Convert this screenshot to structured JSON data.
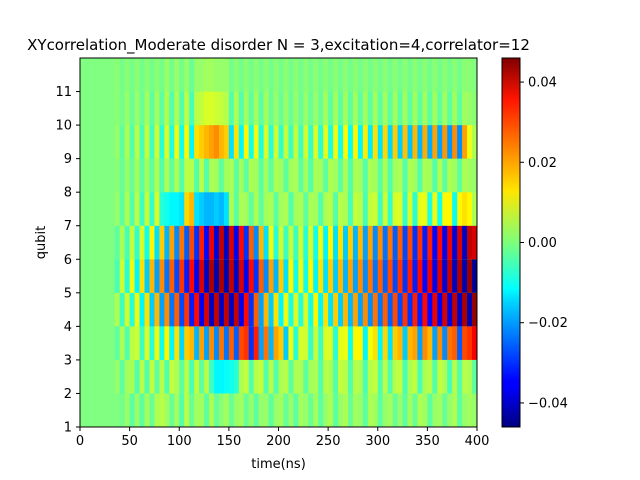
{
  "chart_data": {
    "type": "heatmap",
    "title": "XYcorrelation_Moderate disorder  N =  3,excitation=4,correlator=12",
    "xlabel": "time(ns)",
    "ylabel": "qubit",
    "xlim": [
      0,
      400
    ],
    "ylim": [
      1,
      12
    ],
    "x_ticks": [
      0,
      50,
      100,
      150,
      200,
      250,
      300,
      350,
      400
    ],
    "y_ticks": [
      1,
      2,
      3,
      4,
      5,
      6,
      7,
      8,
      9,
      10,
      11
    ],
    "colormap": "jet",
    "colorbar": {
      "min": -0.046,
      "max": 0.046,
      "ticks": [
        -0.04,
        -0.02,
        0.0,
        0.02,
        0.04
      ],
      "tick_labels": [
        "−0.04",
        "−0.02",
        "0.00",
        "0.02",
        "0.04"
      ]
    },
    "time_step": 5,
    "rows": [
      {
        "qubit_from": 1,
        "qubit_to": 2,
        "values": [
          0,
          0,
          0,
          0,
          0,
          0,
          0,
          0,
          -0.001,
          0.002,
          -0.003,
          0.002,
          -0.003,
          0.003,
          -0.002,
          0.004,
          0.005,
          0.003,
          -0.002,
          0.003,
          -0.004,
          0.005,
          -0.002,
          0.003,
          0.003,
          -0.003,
          0.004,
          -0.002,
          0.001,
          0.003,
          -0.002,
          0.002,
          0.003,
          -0.002,
          0.002,
          -0.003,
          0.002,
          0.002,
          -0.003,
          0.002,
          0.003,
          -0.002,
          0.002,
          -0.003,
          0.003,
          0.002,
          -0.002,
          0.003,
          -0.003,
          0.002,
          0.004,
          -0.003,
          0.002,
          0.004,
          -0.002,
          0.003,
          0.002,
          -0.003,
          0.004,
          0.003,
          -0.003,
          0.002,
          0.003,
          -0.002,
          0.002,
          -0.003,
          0.003,
          -0.002,
          0.004,
          0.003,
          -0.003,
          0.002,
          0.003,
          -0.002,
          0.002,
          0.004,
          -0.003,
          0.002,
          0.003,
          0.002
        ]
      },
      {
        "qubit_from": 2,
        "qubit_to": 3,
        "values": [
          0,
          0,
          0,
          0,
          0,
          0,
          0,
          0.002,
          -0.003,
          0.003,
          0.004,
          -0.004,
          0.005,
          -0.004,
          0.006,
          -0.003,
          0.005,
          -0.004,
          0.006,
          0.004,
          -0.003,
          0.005,
          -0.005,
          0.006,
          -0.003,
          0.005,
          -0.006,
          -0.012,
          -0.012,
          -0.011,
          -0.01,
          -0.008,
          0.004,
          0.006,
          -0.004,
          0.005,
          0.006,
          -0.004,
          0.005,
          -0.004,
          0.004,
          0.005,
          -0.003,
          0.004,
          0.004,
          -0.003,
          0.003,
          0.004,
          -0.004,
          0.005,
          0.004,
          -0.004,
          0.006,
          0.005,
          -0.004,
          0.005,
          0.004,
          -0.005,
          0.005,
          0.006,
          -0.004,
          0.005,
          -0.004,
          0.005,
          0.006,
          -0.005,
          0.004,
          0.006,
          -0.005,
          0.004,
          0.005,
          -0.004,
          0.006,
          0.004,
          -0.005,
          0.005,
          -0.004,
          0.005,
          0.004,
          -0.003
        ]
      },
      {
        "qubit_from": 3,
        "qubit_to": 4,
        "values": [
          0,
          0,
          0,
          0,
          0,
          0,
          0,
          -0.003,
          0.004,
          -0.004,
          0.005,
          0.007,
          -0.006,
          0.008,
          -0.008,
          0.01,
          -0.01,
          0.012,
          -0.012,
          0.014,
          -0.015,
          0.016,
          0.018,
          -0.018,
          0.02,
          -0.02,
          0.022,
          -0.022,
          0.024,
          -0.024,
          0.026,
          -0.026,
          0.028,
          0.03,
          -0.03,
          0.032,
          -0.02,
          0.024,
          -0.018,
          0.02,
          0.016,
          -0.016,
          0.01,
          -0.008,
          0.008,
          0.007,
          -0.007,
          0.006,
          -0.006,
          0.008,
          0.008,
          -0.008,
          0.009,
          0.01,
          -0.01,
          0.012,
          0.012,
          -0.012,
          0.01,
          0.014,
          -0.012,
          0.015,
          -0.014,
          0.016,
          0.018,
          -0.016,
          0.018,
          0.02,
          -0.02,
          0.022,
          0.018,
          -0.02,
          0.022,
          -0.022,
          0.024,
          0.026,
          -0.026,
          0.028,
          0.03,
          0.035
        ]
      },
      {
        "qubit_from": 4,
        "qubit_to": 5,
        "values": [
          0,
          0,
          0,
          0,
          0,
          0,
          0,
          0.004,
          -0.006,
          0.007,
          -0.008,
          0.01,
          -0.012,
          0.014,
          -0.016,
          0.018,
          -0.02,
          0.022,
          -0.024,
          0.026,
          -0.028,
          0.03,
          -0.032,
          0.034,
          -0.036,
          0.038,
          -0.04,
          0.04,
          -0.04,
          0.04,
          -0.04,
          0.04,
          -0.036,
          0.034,
          -0.03,
          0.026,
          -0.02,
          0.018,
          -0.016,
          0.014,
          -0.012,
          0.01,
          -0.009,
          0.008,
          -0.008,
          0.008,
          -0.01,
          0.012,
          -0.012,
          0.014,
          -0.014,
          0.016,
          -0.016,
          0.018,
          -0.018,
          0.02,
          -0.02,
          0.022,
          -0.022,
          0.024,
          -0.024,
          0.026,
          -0.026,
          0.028,
          -0.028,
          0.03,
          -0.03,
          0.032,
          -0.032,
          0.034,
          -0.034,
          0.036,
          -0.036,
          0.038,
          -0.038,
          0.04,
          -0.04,
          0.042,
          -0.042,
          0.044
        ]
      },
      {
        "qubit_from": 5,
        "qubit_to": 6,
        "values": [
          0,
          0,
          0,
          0,
          0,
          0,
          0,
          -0.005,
          0.007,
          -0.008,
          0.01,
          -0.012,
          0.014,
          -0.016,
          0.018,
          -0.02,
          0.022,
          -0.024,
          0.026,
          -0.028,
          0.03,
          -0.032,
          0.034,
          -0.036,
          0.038,
          -0.04,
          0.042,
          -0.042,
          0.042,
          -0.042,
          0.04,
          -0.04,
          0.038,
          -0.036,
          0.034,
          -0.03,
          0.026,
          -0.022,
          0.02,
          -0.018,
          0.016,
          -0.014,
          0.012,
          -0.01,
          0.01,
          -0.01,
          0.012,
          -0.012,
          0.014,
          -0.014,
          0.016,
          -0.016,
          0.018,
          -0.018,
          0.02,
          -0.02,
          0.022,
          -0.022,
          0.024,
          -0.024,
          0.026,
          -0.026,
          0.028,
          -0.028,
          0.03,
          -0.03,
          0.032,
          -0.032,
          0.034,
          -0.034,
          0.036,
          -0.036,
          0.038,
          -0.038,
          0.04,
          -0.04,
          0.042,
          -0.042,
          0.044,
          -0.044
        ]
      },
      {
        "qubit_from": 6,
        "qubit_to": 7,
        "values": [
          0,
          0,
          0,
          0,
          0,
          0,
          0,
          -0.003,
          0.004,
          -0.005,
          0.006,
          -0.007,
          0.008,
          -0.01,
          0.012,
          -0.014,
          0.016,
          -0.018,
          0.02,
          -0.022,
          0.024,
          -0.026,
          0.028,
          -0.03,
          0.032,
          -0.034,
          0.036,
          -0.038,
          0.04,
          -0.04,
          0.038,
          -0.036,
          0.034,
          -0.03,
          0.026,
          -0.022,
          0.018,
          -0.014,
          0.01,
          -0.008,
          0.007,
          -0.006,
          0.006,
          -0.006,
          0.007,
          -0.008,
          0.008,
          -0.01,
          0.01,
          -0.012,
          0.012,
          -0.014,
          0.014,
          -0.016,
          0.016,
          -0.018,
          0.018,
          -0.02,
          0.02,
          -0.022,
          0.022,
          -0.024,
          0.024,
          -0.026,
          0.026,
          -0.028,
          0.028,
          -0.03,
          0.03,
          -0.032,
          0.032,
          -0.034,
          0.034,
          -0.036,
          0.036,
          -0.038,
          0.038,
          -0.04,
          0.04,
          0.038
        ]
      },
      {
        "qubit_from": 7,
        "qubit_to": 8,
        "values": [
          0,
          0,
          0,
          0,
          0,
          0,
          0,
          0.002,
          -0.003,
          0.004,
          -0.004,
          0.005,
          -0.006,
          0.006,
          -0.007,
          0.008,
          -0.008,
          -0.01,
          -0.012,
          -0.012,
          -0.014,
          0.015,
          0.018,
          -0.014,
          -0.016,
          -0.018,
          -0.018,
          -0.016,
          -0.018,
          -0.014,
          0.004,
          -0.003,
          0.004,
          0.003,
          -0.003,
          0.004,
          -0.003,
          0.003,
          0.004,
          -0.003,
          0.003,
          0.004,
          -0.004,
          0.003,
          0.004,
          -0.003,
          0.004,
          0.003,
          -0.004,
          0.004,
          0.005,
          -0.004,
          0.005,
          0.004,
          -0.005,
          0.006,
          0.005,
          -0.005,
          0.006,
          0.007,
          -0.006,
          0.007,
          -0.007,
          0.008,
          0.008,
          -0.007,
          0.008,
          -0.008,
          0.009,
          0.01,
          -0.009,
          0.01,
          -0.01,
          0.012,
          0.012,
          -0.011,
          0.012,
          0.014,
          0.012,
          0.004
        ]
      },
      {
        "qubit_from": 8,
        "qubit_to": 9,
        "values": [
          0,
          0,
          0,
          0,
          0,
          0,
          0,
          0.001,
          -0.002,
          0.002,
          -0.002,
          0.003,
          -0.003,
          0.003,
          -0.003,
          0.004,
          -0.004,
          0.004,
          -0.003,
          0.004,
          -0.004,
          0.005,
          0.005,
          -0.004,
          0.005,
          -0.004,
          0.004,
          0.003,
          -0.003,
          0.003,
          0.004,
          -0.003,
          0.003,
          -0.003,
          0.004,
          0.003,
          -0.003,
          0.003,
          -0.003,
          0.004,
          0.003,
          -0.003,
          0.003,
          0.004,
          -0.003,
          0.003,
          -0.004,
          0.004,
          0.003,
          -0.003,
          0.004,
          0.003,
          -0.003,
          0.004,
          -0.004,
          0.004,
          0.003,
          -0.004,
          0.004,
          0.003,
          -0.003,
          0.004,
          -0.004,
          0.003,
          0.004,
          -0.004,
          0.004,
          0.003,
          -0.004,
          0.004,
          0.003,
          -0.004,
          0.004,
          -0.003,
          0.004,
          0.003,
          -0.003,
          0.004,
          0.003,
          0.002
        ]
      },
      {
        "qubit_from": 9,
        "qubit_to": 10,
        "values": [
          0,
          0,
          0,
          0,
          0,
          0,
          0,
          0.002,
          -0.003,
          0.004,
          -0.004,
          0.005,
          -0.005,
          0.006,
          -0.006,
          0.007,
          -0.008,
          0.008,
          -0.009,
          0.01,
          -0.01,
          0.012,
          -0.012,
          0.014,
          0.016,
          0.018,
          0.02,
          0.022,
          0.018,
          0.016,
          -0.014,
          0.014,
          -0.012,
          0.012,
          -0.01,
          0.01,
          -0.009,
          0.008,
          -0.008,
          0.007,
          -0.007,
          0.006,
          -0.006,
          0.006,
          -0.006,
          0.007,
          -0.007,
          0.008,
          -0.008,
          0.009,
          -0.009,
          0.01,
          -0.01,
          0.011,
          -0.011,
          0.012,
          -0.012,
          0.013,
          -0.013,
          0.014,
          -0.014,
          0.015,
          -0.015,
          0.016,
          -0.016,
          0.017,
          -0.017,
          0.018,
          -0.018,
          0.019,
          -0.019,
          0.02,
          -0.02,
          0.021,
          -0.021,
          0.022,
          -0.022,
          0.02,
          0.01,
          0.004
        ]
      },
      {
        "qubit_from": 10,
        "qubit_to": 11,
        "values": [
          0,
          0,
          0,
          0,
          0,
          0,
          0,
          0.001,
          -0.001,
          0.002,
          -0.002,
          0.002,
          -0.002,
          0.003,
          -0.003,
          0.003,
          -0.003,
          0.004,
          -0.004,
          0.004,
          -0.004,
          0.005,
          -0.005,
          0.005,
          0.006,
          0.008,
          0.008,
          0.007,
          0.006,
          0.005,
          -0.004,
          0.004,
          -0.004,
          0.003,
          -0.003,
          0.003,
          -0.003,
          0.003,
          -0.002,
          0.002,
          -0.002,
          0.002,
          -0.002,
          0.002,
          -0.002,
          0.002,
          -0.002,
          0.002,
          -0.002,
          0.003,
          -0.003,
          0.003,
          -0.003,
          0.003,
          -0.003,
          0.003,
          -0.003,
          0.003,
          -0.003,
          0.003,
          -0.003,
          0.003,
          -0.003,
          0.003,
          -0.003,
          0.003,
          -0.003,
          0.003,
          -0.003,
          0.003,
          -0.003,
          0.003,
          -0.003,
          0.003,
          -0.003,
          0.003,
          -0.003,
          0.003,
          0.002,
          0.001
        ]
      },
      {
        "qubit_from": 11,
        "qubit_to": 12,
        "values": [
          0,
          0,
          0,
          0,
          0,
          0,
          0,
          0.001,
          -0.001,
          0.001,
          -0.001,
          0.001,
          -0.001,
          0.001,
          -0.001,
          0.001,
          -0.001,
          0.002,
          -0.001,
          0.002,
          -0.001,
          0.002,
          -0.002,
          0.002,
          0.002,
          0.003,
          0.003,
          0.002,
          0.002,
          0.002,
          -0.001,
          0.001,
          -0.001,
          0.001,
          -0.001,
          0.001,
          -0.001,
          0.001,
          -0.001,
          0.001,
          -0.001,
          0.001,
          -0.001,
          0.001,
          -0.001,
          0.001,
          -0.001,
          0.001,
          -0.001,
          0.001,
          -0.001,
          0.001,
          -0.001,
          0.001,
          -0.001,
          0.001,
          -0.001,
          0.001,
          -0.001,
          0.001,
          -0.001,
          0.001,
          -0.001,
          0.001,
          -0.001,
          0.001,
          -0.001,
          0.001,
          -0.001,
          0.001,
          -0.001,
          0.001,
          -0.001,
          0.001,
          -0.001,
          0.001,
          -0.001,
          0.001,
          0.001,
          0.0
        ]
      }
    ]
  }
}
